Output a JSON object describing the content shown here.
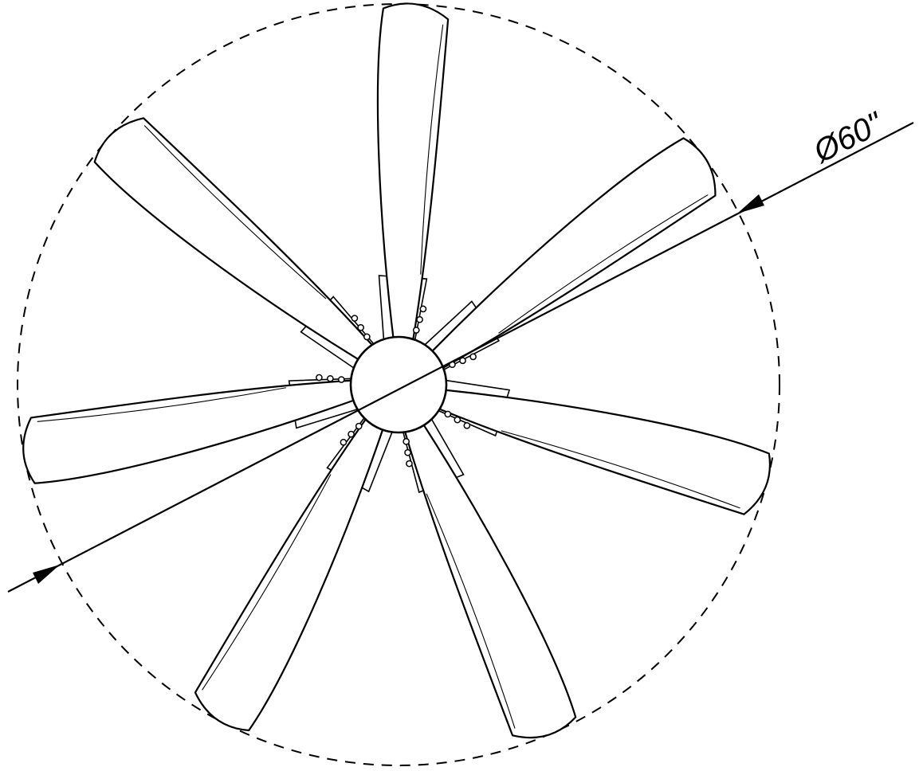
{
  "diagram": {
    "blade_count": 7,
    "diameter_label": "Ø60\"",
    "icons": {
      "blade": "fan-blade-icon",
      "hub": "motor-hub-icon",
      "arrow": "dimension-arrow-icon"
    },
    "colors": {
      "line": "#000000",
      "background": "#ffffff"
    }
  }
}
